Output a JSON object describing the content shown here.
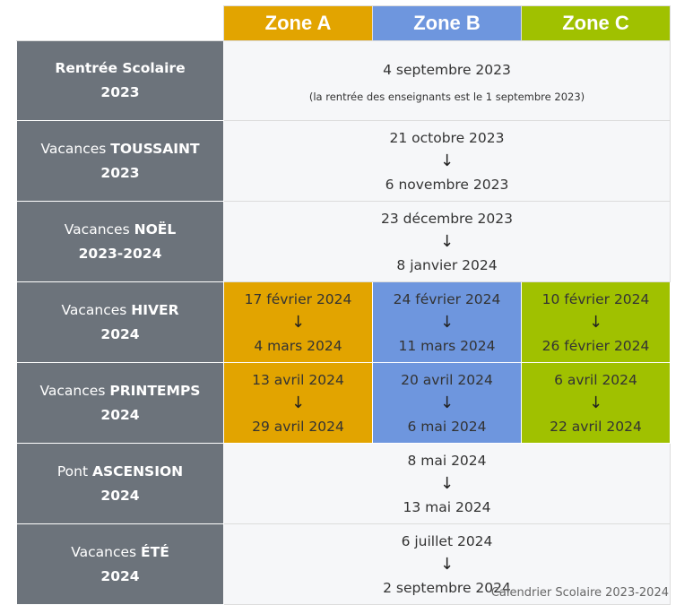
{
  "colors": {
    "zone_a": "#e2a400",
    "zone_b": "#6e96de",
    "zone_c": "#a0c100",
    "label_bg": "#6c737b",
    "cell_bg": "#f6f7f9"
  },
  "arrow_glyph": "↓",
  "headers": {
    "zone_a": "Zone A",
    "zone_b": "Zone B",
    "zone_c": "Zone C"
  },
  "rows": {
    "rentree": {
      "label_plain": "",
      "label_bold": "Rentrée Scolaire",
      "label_year": "2023",
      "date": "4 septembre 2023",
      "note": "(la rentrée des enseignants est le 1 septembre 2023)"
    },
    "toussaint": {
      "label_plain": "Vacances ",
      "label_bold": "TOUSSAINT",
      "label_year": "2023",
      "from": "21 octobre 2023",
      "to": "6 novembre 2023"
    },
    "noel": {
      "label_plain": "Vacances ",
      "label_bold": "NOËL",
      "label_year": "2023-2024",
      "from": "23 décembre 2023",
      "to": "8 janvier 2024"
    },
    "hiver": {
      "label_plain": "Vacances ",
      "label_bold": "HIVER",
      "label_year": "2024",
      "zone_a": {
        "from": "17 février 2024",
        "to": "4 mars 2024"
      },
      "zone_b": {
        "from": "24 février 2024",
        "to": "11 mars 2024"
      },
      "zone_c": {
        "from": "10 février 2024",
        "to": "26 février 2024"
      }
    },
    "printemps": {
      "label_plain": "Vacances ",
      "label_bold": "PRINTEMPS",
      "label_year": "2024",
      "zone_a": {
        "from": "13 avril 2024",
        "to": "29 avril 2024"
      },
      "zone_b": {
        "from": "20 avril 2024",
        "to": "6 mai 2024"
      },
      "zone_c": {
        "from": "6 avril 2024",
        "to": "22 avril 2024"
      }
    },
    "ascension": {
      "label_plain": "Pont ",
      "label_bold": "ASCENSION",
      "label_year": "2024",
      "from": "8 mai 2024",
      "to": "13 mai 2024"
    },
    "ete": {
      "label_plain": "Vacances ",
      "label_bold": "ÉTÉ",
      "label_year": "2024",
      "from": "6 juillet 2024",
      "to": "2 septembre 2024"
    }
  },
  "caption": "Calendrier Scolaire 2023-2024"
}
